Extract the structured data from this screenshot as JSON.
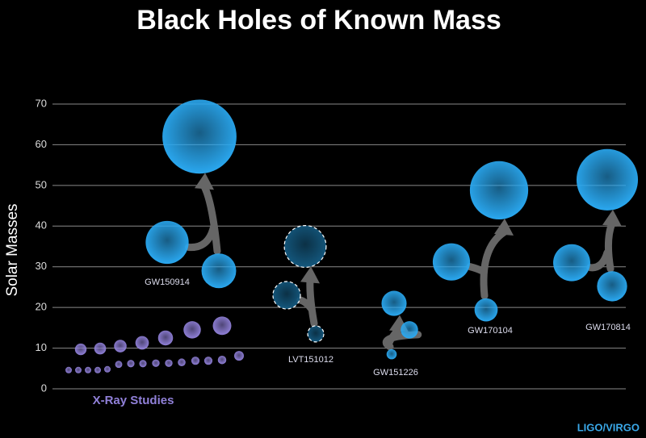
{
  "chart_data": {
    "type": "scatter",
    "title": "Black Holes of Known Mass",
    "ylabel": "Solar Masses",
    "credit": "LIGO/VIRGO",
    "ylim": [
      0,
      70
    ],
    "yticks": [
      0,
      10,
      20,
      30,
      40,
      50,
      60,
      70
    ],
    "grid": true,
    "series": [
      {
        "name": "X-Ray Studies",
        "color": "#9080d8",
        "values": [
          9.7,
          9.9,
          10.5,
          11.3,
          12.5,
          14.5,
          15.5,
          4.6,
          4.6,
          4.6,
          4.6,
          4.8,
          6,
          6.2,
          6.2,
          6.3,
          6.3,
          6.5,
          6.9,
          6.9,
          7.1,
          8.1
        ]
      },
      {
        "name": "GW150914",
        "color": "#2aa8f0",
        "values": [
          36,
          29,
          62
        ]
      },
      {
        "name": "LVT151012",
        "color": "#14587e",
        "dashed": true,
        "values": [
          23,
          13.5,
          35
        ]
      },
      {
        "name": "GW151226",
        "color": "#2aa8f0",
        "values": [
          14.5,
          8.5,
          21
        ]
      },
      {
        "name": "GW170104",
        "color": "#2aa8f0",
        "values": [
          31.2,
          19.4,
          48.8
        ]
      },
      {
        "name": "GW170814",
        "color": "#2aa8f0",
        "values": [
          31,
          25.2,
          51.4
        ]
      }
    ]
  }
}
